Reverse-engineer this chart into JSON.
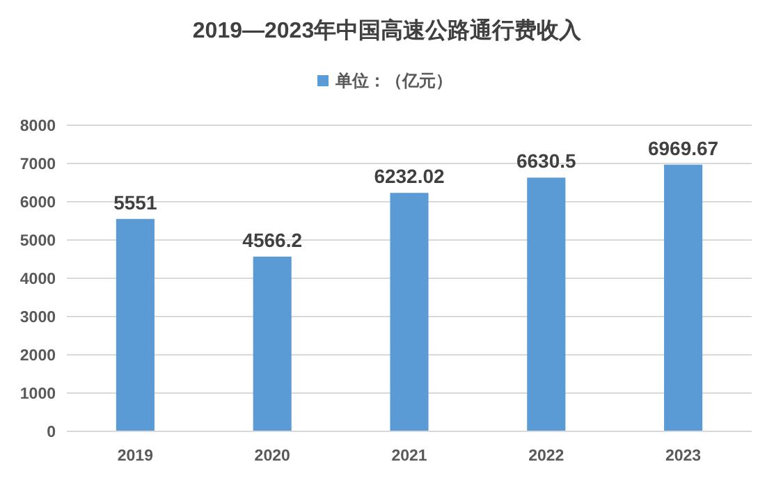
{
  "chart_data": {
    "type": "bar",
    "title": "2019—2023年中国高速公路通行费收入",
    "categories": [
      "2019",
      "2020",
      "2021",
      "2022",
      "2023"
    ],
    "series": [
      {
        "name": "单位：（亿元）",
        "color": "#5b9bd5",
        "values": [
          5551,
          4566.2,
          6232.02,
          6630.5,
          6969.67
        ]
      }
    ],
    "ylim": [
      0,
      8000
    ],
    "yticks": [
      0,
      1000,
      2000,
      3000,
      4000,
      5000,
      6000,
      7000,
      8000
    ],
    "grid": "y",
    "legend": "top",
    "data_labels": true
  }
}
